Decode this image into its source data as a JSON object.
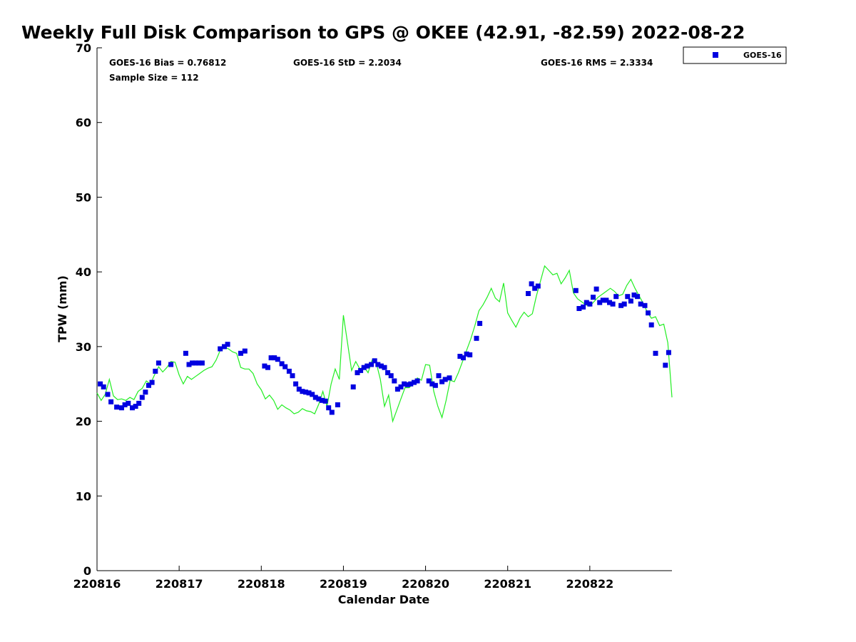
{
  "chart_data": {
    "type": "scatter",
    "title": "Weekly Full Disk Comparison to GPS @ OKEE (42.91, -82.59) 2022-08-22",
    "xlabel": "Calendar Date",
    "ylabel": "TPW (mm)",
    "xlim": [
      0,
      7
    ],
    "ylim": [
      0,
      70
    ],
    "x_ticks": [
      0,
      1,
      2,
      3,
      4,
      5,
      6
    ],
    "x_tick_labels": [
      "220816",
      "220817",
      "220818",
      "220819",
      "220820",
      "220821",
      "220822"
    ],
    "y_ticks": [
      0,
      10,
      20,
      30,
      40,
      50,
      60,
      70
    ],
    "y_tick_labels": [
      "0",
      "10",
      "20",
      "30",
      "40",
      "50",
      "60",
      "70"
    ],
    "grid": false,
    "legend_position": "outside-top-right",
    "stats": {
      "bias": "GOES-16 Bias = 0.76812",
      "std": "GOES-16 StD = 2.2034",
      "rms": "GOES-16 RMS = 2.3334",
      "sample": "Sample Size = 112"
    },
    "series": [
      {
        "name": "GOES-16",
        "kind": "markers",
        "marker": "square",
        "color": "#0000e0",
        "x": [
          0.04,
          0.08,
          0.13,
          0.17,
          0.24,
          0.3,
          0.34,
          0.38,
          0.43,
          0.47,
          0.51,
          0.55,
          0.59,
          0.63,
          0.67,
          0.71,
          0.75,
          0.9,
          1.08,
          1.12,
          1.16,
          1.2,
          1.24,
          1.28,
          1.5,
          1.55,
          1.59,
          1.75,
          1.8,
          2.04,
          2.08,
          2.12,
          2.16,
          2.2,
          2.25,
          2.29,
          2.34,
          2.38,
          2.42,
          2.46,
          2.5,
          2.54,
          2.58,
          2.62,
          2.66,
          2.7,
          2.74,
          2.78,
          2.82,
          2.86,
          2.93,
          3.12,
          3.17,
          3.21,
          3.25,
          3.29,
          3.34,
          3.38,
          3.42,
          3.46,
          3.5,
          3.54,
          3.58,
          3.62,
          3.66,
          3.7,
          3.74,
          3.78,
          3.82,
          3.86,
          3.9,
          4.04,
          4.08,
          4.12,
          4.16,
          4.2,
          4.24,
          4.29,
          4.42,
          4.46,
          4.5,
          4.54,
          4.62,
          4.66,
          5.25,
          5.29,
          5.33,
          5.37,
          5.83,
          5.87,
          5.92,
          5.96,
          6.0,
          6.04,
          6.08,
          6.12,
          6.16,
          6.2,
          6.24,
          6.28,
          6.32,
          6.38,
          6.42,
          6.46,
          6.5,
          6.54,
          6.58,
          6.62,
          6.67,
          6.71,
          6.75,
          6.8,
          6.92,
          6.96
        ],
        "y": [
          25,
          24.6,
          23.6,
          22.6,
          21.9,
          21.8,
          22.2,
          22.4,
          21.8,
          22.0,
          22.4,
          23.2,
          23.9,
          24.8,
          25.2,
          26.7,
          27.8,
          27.6,
          29.1,
          27.6,
          27.8,
          27.8,
          27.8,
          27.8,
          29.7,
          30.0,
          30.3,
          29.1,
          29.4,
          27.4,
          27.2,
          28.5,
          28.5,
          28.3,
          27.7,
          27.3,
          26.7,
          26.1,
          25.0,
          24.3,
          24.0,
          23.9,
          23.8,
          23.6,
          23.2,
          23.0,
          22.8,
          22.7,
          21.8,
          21.2,
          22.2,
          24.6,
          26.5,
          26.8,
          27.2,
          27.4,
          27.6,
          28.1,
          27.6,
          27.4,
          27.2,
          26.5,
          26.1,
          25.4,
          24.3,
          24.6,
          25.0,
          24.9,
          25.0,
          25.2,
          25.4,
          25.4,
          25.0,
          24.8,
          26.1,
          25.3,
          25.6,
          25.8,
          28.7,
          28.5,
          29.0,
          28.9,
          31.1,
          33.1,
          37.1,
          38.4,
          37.8,
          38.1,
          37.5,
          35.1,
          35.3,
          35.9,
          35.7,
          36.6,
          37.7,
          35.9,
          36.2,
          36.2,
          35.9,
          35.7,
          36.7,
          35.5,
          35.7,
          36.7,
          36.1,
          36.9,
          36.7,
          35.7,
          35.5,
          34.5,
          32.9,
          29.1,
          27.5,
          29.2
        ]
      },
      {
        "name": "",
        "kind": "line",
        "color": "#22ee22",
        "x": [
          0,
          0.05,
          0.1,
          0.15,
          0.2,
          0.25,
          0.3,
          0.35,
          0.4,
          0.45,
          0.5,
          0.55,
          0.6,
          0.65,
          0.7,
          0.75,
          0.8,
          0.85,
          0.9,
          0.95,
          1.0,
          1.05,
          1.1,
          1.15,
          1.2,
          1.25,
          1.3,
          1.35,
          1.4,
          1.45,
          1.5,
          1.55,
          1.6,
          1.65,
          1.7,
          1.75,
          1.8,
          1.85,
          1.9,
          1.95,
          2.0,
          2.05,
          2.1,
          2.15,
          2.2,
          2.25,
          2.3,
          2.35,
          2.4,
          2.45,
          2.5,
          2.55,
          2.6,
          2.65,
          2.7,
          2.75,
          2.8,
          2.85,
          2.9,
          2.95,
          3.0,
          3.05,
          3.1,
          3.15,
          3.2,
          3.25,
          3.3,
          3.35,
          3.4,
          3.45,
          3.5,
          3.55,
          3.6,
          3.65,
          3.7,
          3.75,
          3.8,
          3.85,
          3.9,
          3.95,
          4.0,
          4.05,
          4.1,
          4.15,
          4.2,
          4.25,
          4.3,
          4.35,
          4.4,
          4.45,
          4.5,
          4.55,
          4.6,
          4.65,
          4.7,
          4.75,
          4.8,
          4.85,
          4.9,
          4.95,
          5.0,
          5.05,
          5.1,
          5.15,
          5.2,
          5.25,
          5.3,
          5.35,
          5.4,
          5.45,
          5.5,
          5.55,
          5.6,
          5.65,
          5.7,
          5.75,
          5.8,
          5.85,
          5.9,
          5.95,
          6.0,
          6.05,
          6.1,
          6.15,
          6.2,
          6.25,
          6.3,
          6.35,
          6.4,
          6.45,
          6.5,
          6.55,
          6.6,
          6.65,
          6.7,
          6.75,
          6.8,
          6.85,
          6.9,
          6.95,
          7.0
        ],
        "y": [
          23.8,
          22.8,
          23.6,
          25.6,
          23.4,
          22.9,
          23.0,
          22.8,
          23.2,
          22.9,
          24.0,
          24.4,
          25.4,
          25.0,
          26.2,
          27.3,
          26.6,
          27.2,
          28.0,
          27.9,
          26.2,
          25.0,
          26.0,
          25.6,
          26.0,
          26.4,
          26.8,
          27.1,
          27.3,
          28.2,
          29.5,
          29.9,
          29.7,
          29.3,
          29.1,
          27.2,
          27.0,
          27.0,
          26.4,
          25.0,
          24.2,
          23.0,
          23.5,
          22.8,
          21.6,
          22.2,
          21.8,
          21.5,
          21.0,
          21.2,
          21.7,
          21.4,
          21.3,
          21.0,
          22.3,
          24.0,
          22.0,
          25.0,
          27.0,
          25.6,
          34.2,
          30.5,
          26.8,
          28.0,
          27.0,
          27.3,
          26.5,
          28.2,
          27.8,
          25.6,
          22.0,
          23.5,
          20.0,
          21.5,
          23.0,
          24.5,
          24.5,
          25.0,
          25.8,
          25.5,
          27.6,
          27.5,
          24.0,
          22.0,
          20.5,
          22.8,
          25.5,
          25.3,
          26.5,
          28.0,
          29.5,
          31.0,
          32.8,
          34.8,
          35.6,
          36.6,
          37.8,
          36.5,
          36.0,
          38.5,
          34.5,
          33.5,
          32.6,
          33.8,
          34.6,
          34.0,
          34.4,
          36.8,
          38.8,
          40.8,
          40.2,
          39.6,
          39.8,
          38.4,
          39.2,
          40.2,
          37.2,
          36.4,
          36.0,
          35.6,
          35.4,
          36.0,
          36.6,
          37.0,
          37.4,
          37.8,
          37.4,
          36.8,
          37.0,
          38.2,
          39.0,
          37.8,
          36.8,
          35.8,
          34.6,
          33.8,
          34.0,
          32.8,
          33.0,
          30.5,
          23.2
        ]
      }
    ]
  }
}
